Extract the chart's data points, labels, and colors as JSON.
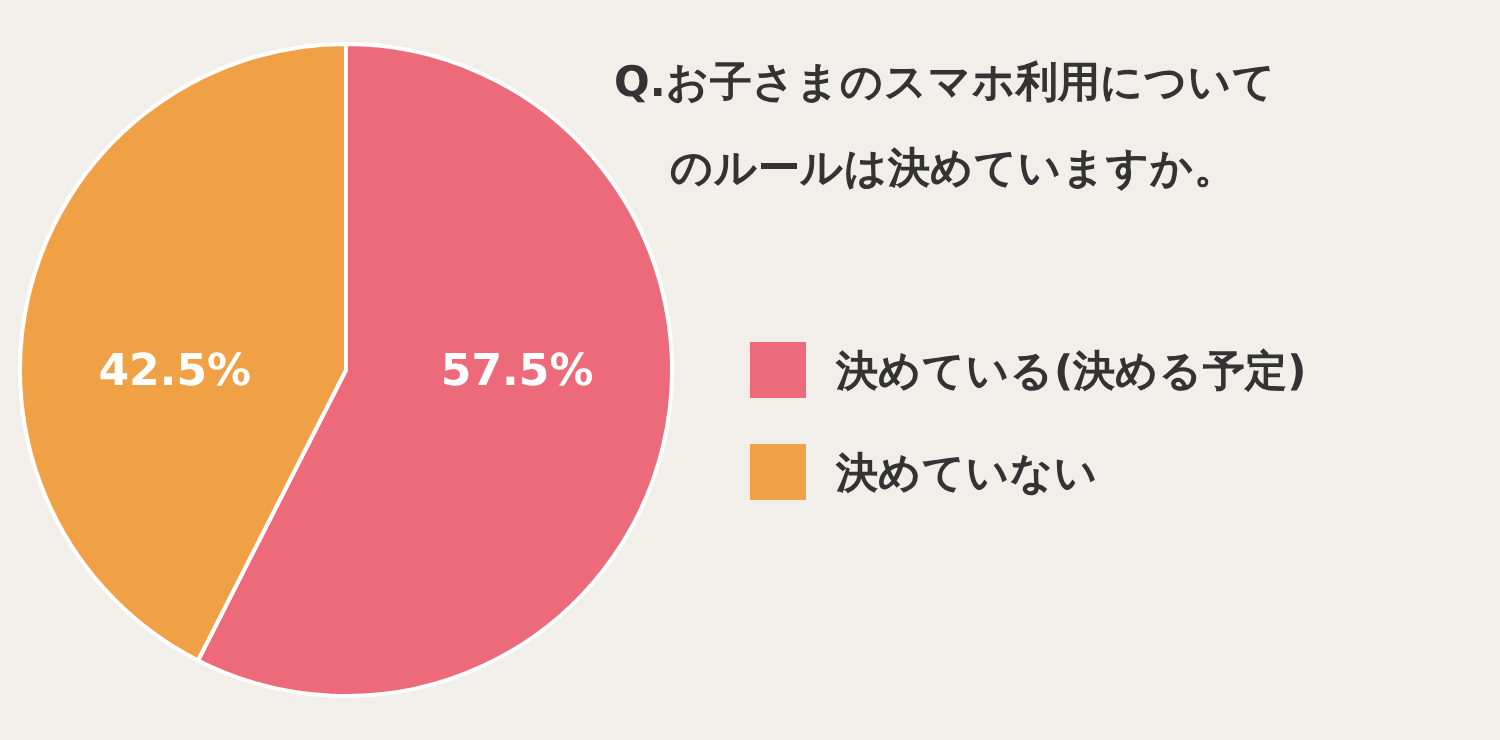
{
  "chart_data": {
    "type": "pie",
    "title": "Q.お子さまのスマホ利用についてのルールは決めていますか。",
    "categories": [
      "決めている(決める予定)",
      "決めていない"
    ],
    "values": [
      57.5,
      42.5
    ],
    "colors": [
      "#ec6a7a",
      "#f0a045"
    ],
    "value_labels": [
      "57.5%",
      "42.5%"
    ],
    "legend": "right"
  }
}
